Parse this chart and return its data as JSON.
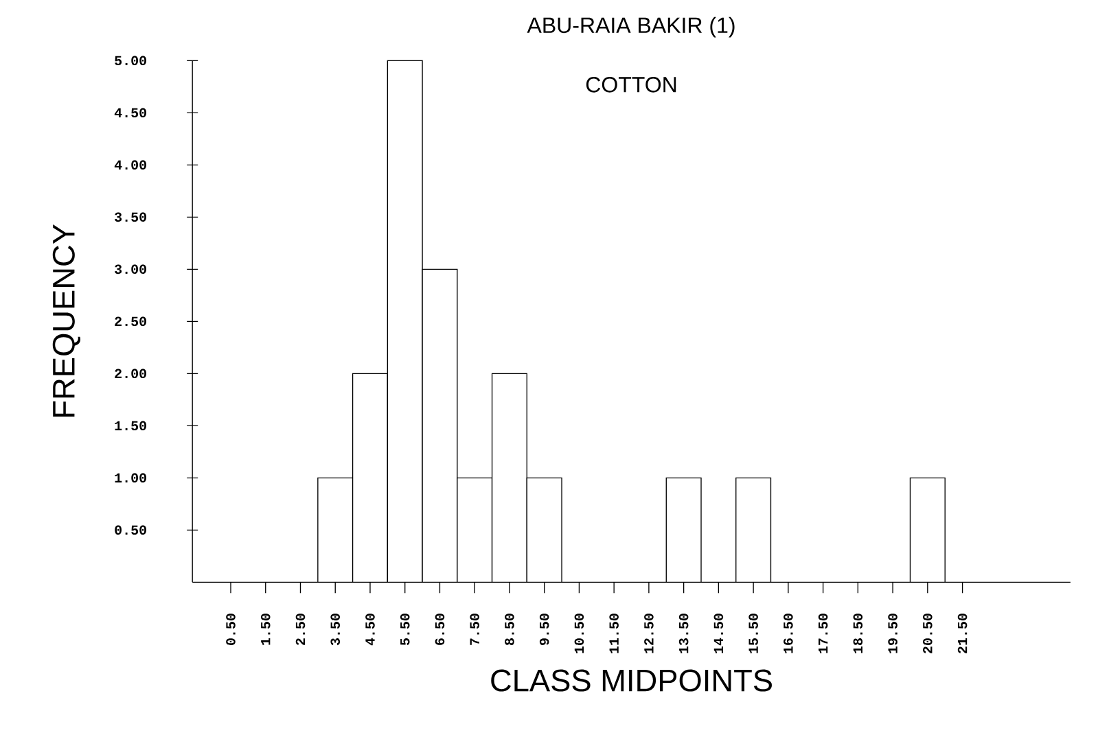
{
  "chart_data": {
    "type": "bar",
    "title": "ABU-RAIA BAKIR (1)",
    "subtitle": "COTTON",
    "xlabel": "CLASS MIDPOINTS",
    "ylabel": "FREQUENCY",
    "color": "#000000",
    "categories": [
      "0.50",
      "1.50",
      "2.50",
      "3.50",
      "4.50",
      "5.50",
      "6.50",
      "7.50",
      "8.50",
      "9.50",
      "10.50",
      "11.50",
      "12.50",
      "13.50",
      "14.50",
      "15.50",
      "16.50",
      "17.50",
      "18.50",
      "19.50",
      "20.50",
      "21.50"
    ],
    "values": [
      0,
      0,
      0,
      1,
      2,
      5,
      3,
      1,
      2,
      1,
      0,
      0,
      0,
      1,
      0,
      1,
      0,
      0,
      0,
      0,
      1,
      0
    ],
    "ylim": [
      0,
      5
    ],
    "yticks": [
      {
        "value": 0.5,
        "label": "0.50"
      },
      {
        "value": 1,
        "label": "1.00"
      },
      {
        "value": 1.5,
        "label": "1.50"
      },
      {
        "value": 2,
        "label": "2.00"
      },
      {
        "value": 2.5,
        "label": "2.50"
      },
      {
        "value": 3,
        "label": "3.00"
      },
      {
        "value": 3.5,
        "label": "3.50"
      },
      {
        "value": 4,
        "label": "4.00"
      },
      {
        "value": 4.5,
        "label": "4.50"
      },
      {
        "value": 5,
        "label": "5.00"
      }
    ]
  }
}
